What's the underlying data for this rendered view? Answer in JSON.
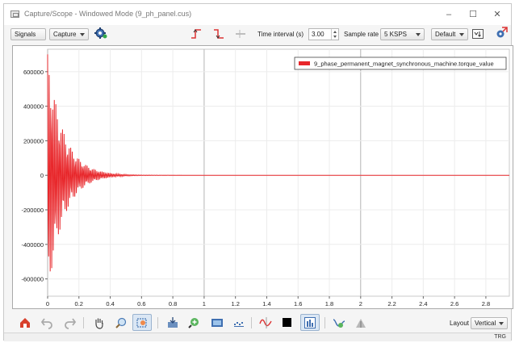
{
  "window": {
    "title": "Capture/Scope - Windowed Mode (9_ph_panel.cus)",
    "minimize_glyph": "–",
    "maximize_glyph": "☐",
    "close_glyph": "✕"
  },
  "toolbar": {
    "signals_label": "Signals",
    "capture_label": "Capture",
    "time_interval_label": "Time interval (s)",
    "time_interval_value": "3.00",
    "sample_rate_label": "Sample rate",
    "sample_rate_value": "5 KSPS",
    "view_preset_value": "Default",
    "icons": [
      "settings-gear-icon",
      "trigger-rising-icon",
      "trigger-falling-icon",
      "trigger-off-icon",
      "fit-view-icon",
      "external-window-icon"
    ]
  },
  "bottom_toolbar": {
    "layout_label": "Layout",
    "layout_value": "Vertical",
    "icons": [
      "home-icon",
      "undo-icon",
      "redo-icon",
      "pan-hand-icon",
      "zoom-icon",
      "zoom-box-icon",
      "export-icon",
      "zoom-in-icon",
      "screenshot-icon",
      "markers-icon",
      "waveform-icon",
      "background-color-icon",
      "bar-view-icon",
      "trace-icon",
      "cursor-icon"
    ]
  },
  "status": {
    "trigger_indicator": "TRG"
  },
  "chart_data": {
    "type": "line",
    "series": [
      {
        "name": "9_phase_permanent_magnet_synchronous_machine.torque_value",
        "color": "#e8262a",
        "description_of_shape": "decaying oscillation",
        "initial_amplitude": 700000,
        "settling_time": 0.5,
        "steady_value": 0
      }
    ],
    "xlim": [
      0,
      2.95
    ],
    "ylim": [
      -700000,
      730000
    ],
    "x_ticks": [
      "0",
      "0.2",
      "0.4",
      "0.6",
      "0.8",
      "1",
      "1.2",
      "1.4",
      "1.6",
      "1.8",
      "2",
      "2.2",
      "2.4",
      "2.6",
      "2.8"
    ],
    "x_tick_values": [
      0,
      0.2,
      0.4,
      0.6,
      0.8,
      1,
      1.2,
      1.4,
      1.6,
      1.8,
      2,
      2.2,
      2.4,
      2.6,
      2.8
    ],
    "y_ticks": [
      "600000",
      "400000",
      "200000",
      "0",
      "-200000",
      "-400000",
      "-600000"
    ],
    "y_tick_values": [
      600000,
      400000,
      200000,
      0,
      -200000,
      -400000,
      -600000
    ],
    "grid": true,
    "legend_position": "top-right"
  }
}
